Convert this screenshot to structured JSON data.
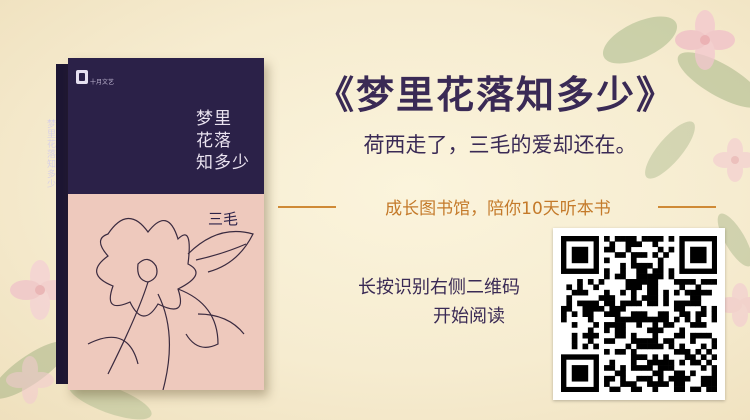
{
  "book": {
    "title_lines": [
      "梦里",
      "花落",
      "知多少"
    ],
    "spine_text": "梦里花落知多少",
    "author": "三毛",
    "publisher": "十月文艺"
  },
  "promo": {
    "headline": "《梦里花落知多少》",
    "subhead": "荷西走了，三毛的爱却还在。",
    "tagline": "成长图书馆，陪你10天听本书",
    "instruction_line1": "长按识别右侧二维码",
    "instruction_line2": "开始阅读"
  },
  "qr_code": {
    "label": "qr-code"
  },
  "colors": {
    "background": "#f6ecd0",
    "headline": "#3a2a55",
    "tagline": "#c47a2a",
    "rule": "#cf8a36",
    "cover_dark": "#2b2148",
    "cover_pink": "#eec9bd"
  },
  "icons": [
    "flower-decoration",
    "publisher-logo-icon",
    "qr-code"
  ]
}
